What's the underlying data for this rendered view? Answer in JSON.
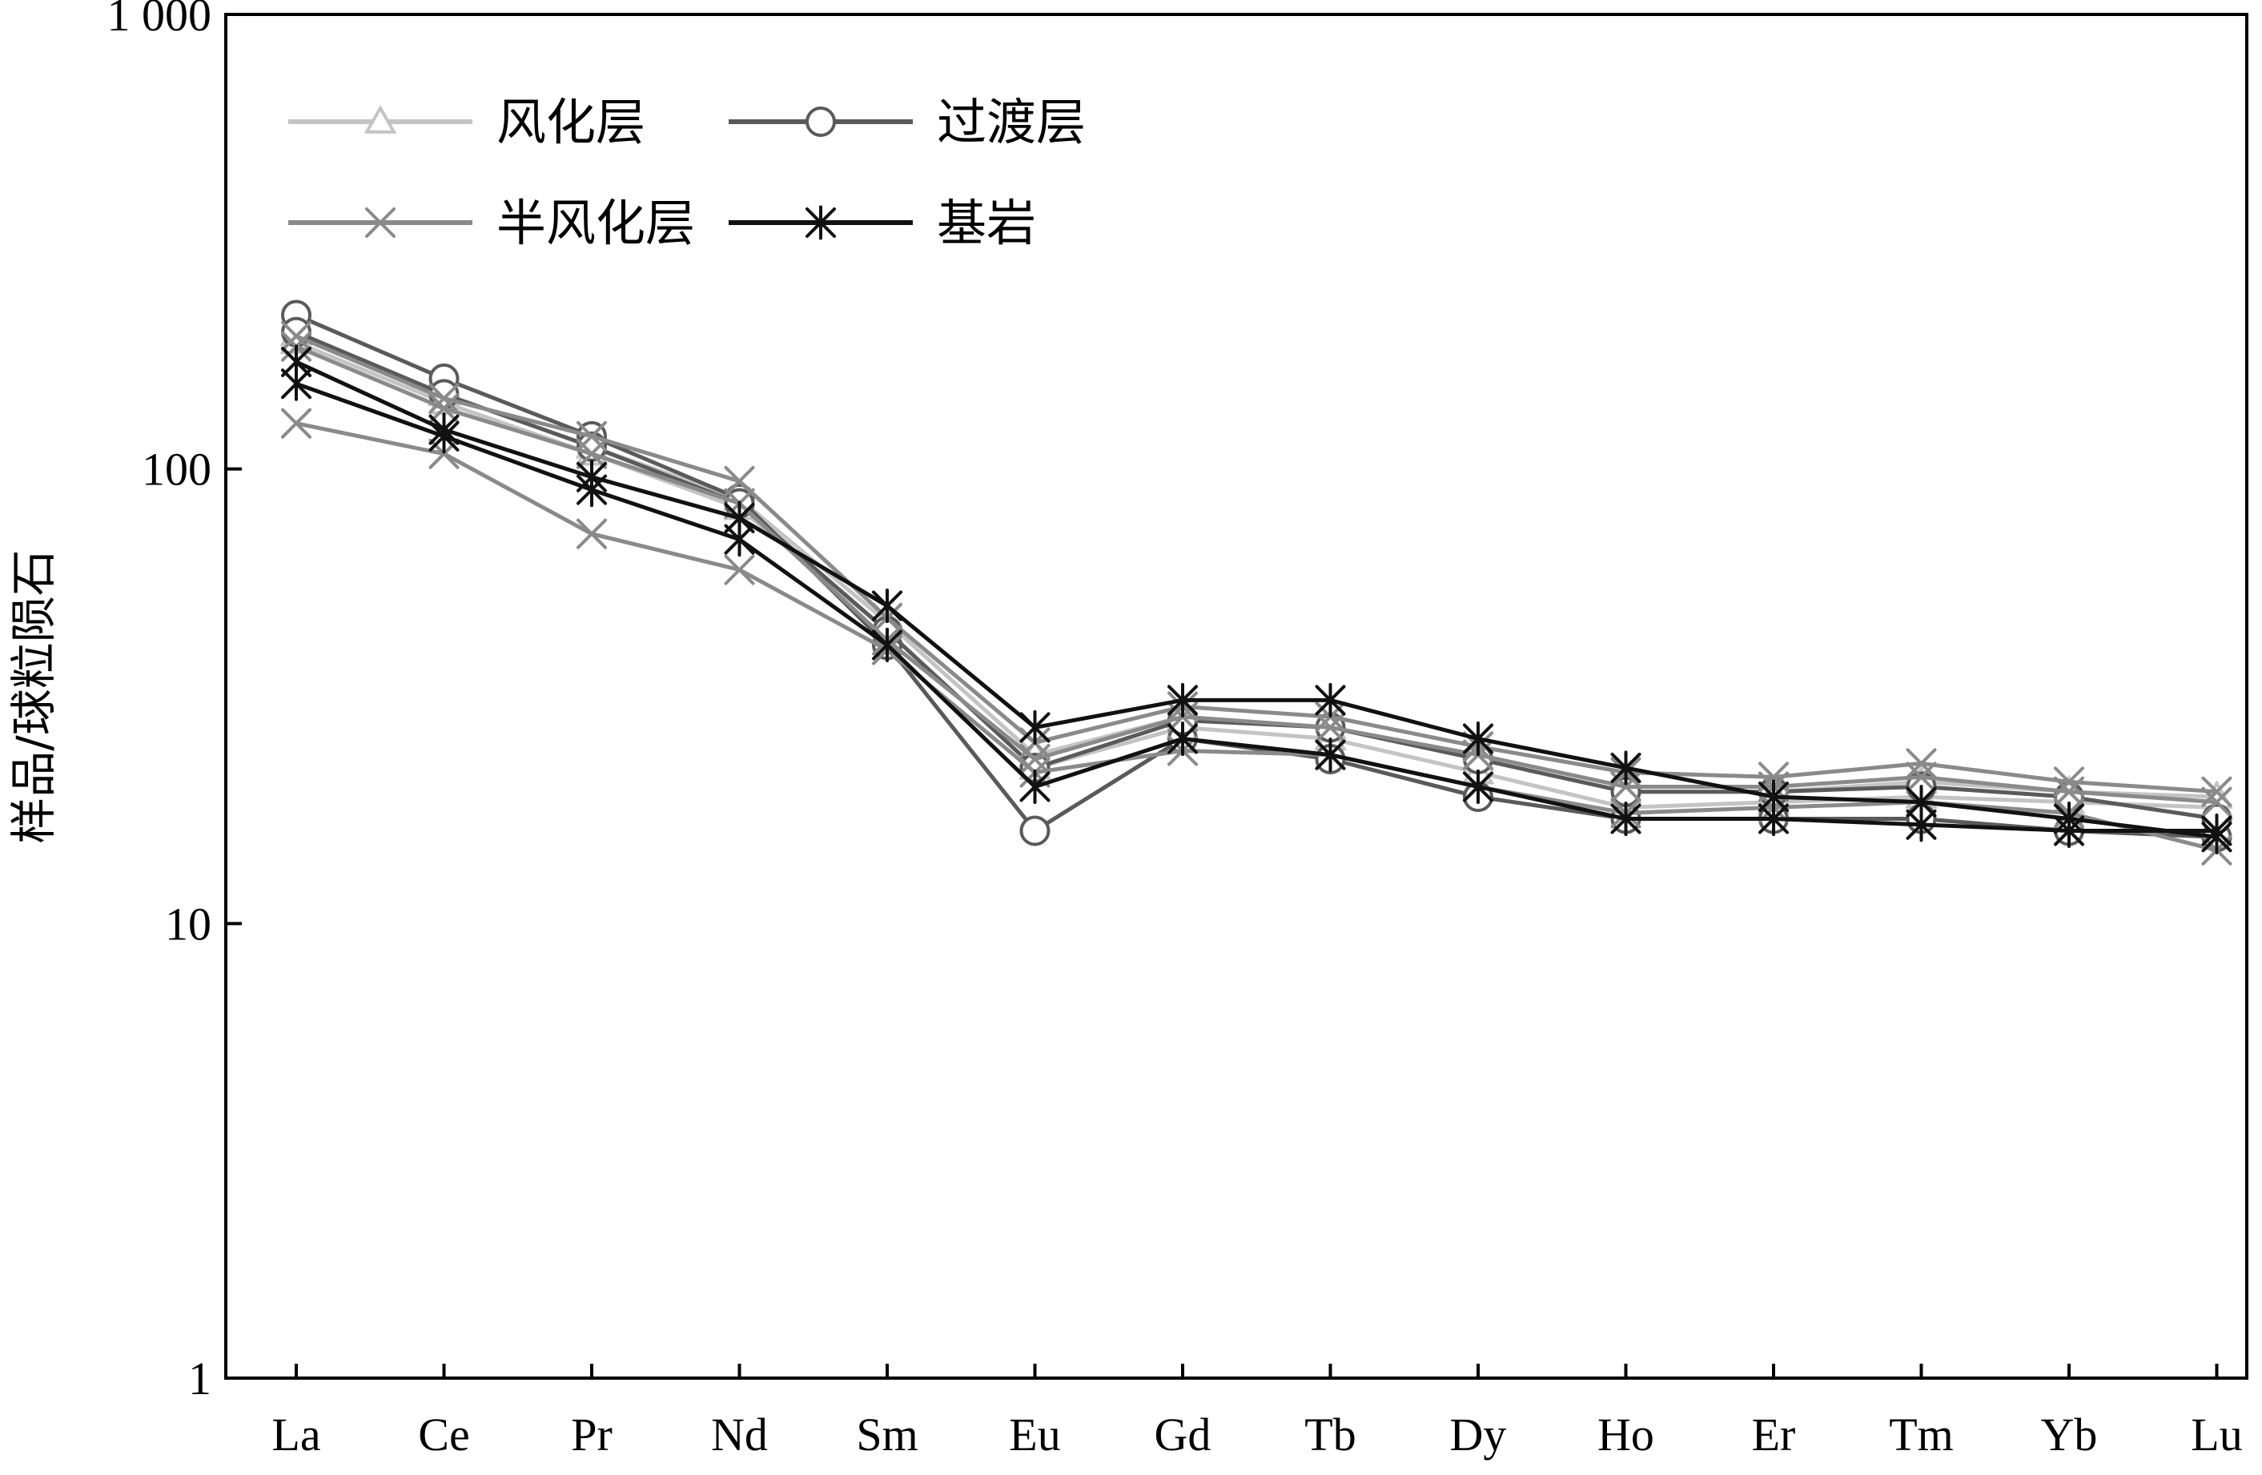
{
  "chart_data": {
    "type": "line",
    "title": "",
    "xlabel": "",
    "ylabel": "样品/球粒陨石",
    "y_scale": "log",
    "ylim": [
      1,
      1000
    ],
    "yticks": [
      {
        "value": 1,
        "label": "1"
      },
      {
        "value": 10,
        "label": "10"
      },
      {
        "value": 100,
        "label": "100"
      },
      {
        "value": 1000,
        "label": "1 000"
      }
    ],
    "categories": [
      "La",
      "Ce",
      "Pr",
      "Nd",
      "Sm",
      "Eu",
      "Gd",
      "Tb",
      "Dy",
      "Ho",
      "Er",
      "Tm",
      "Yb",
      "Lu"
    ],
    "grid": false,
    "legend_position": "top-left",
    "legend": [
      {
        "label": "风化层",
        "marker": "triangle",
        "color": "#c4c4c4"
      },
      {
        "label": "过渡层",
        "marker": "circle",
        "color": "#5a5a5a"
      },
      {
        "label": "半风化层",
        "marker": "x",
        "color": "#8a8a8a"
      },
      {
        "label": "基岩",
        "marker": "asterisk",
        "color": "#111111"
      }
    ],
    "series": [
      {
        "group": "风化层",
        "values": [
          190,
          140,
          108,
          82,
          44,
          22,
          27,
          25.5,
          21.5,
          18,
          18.5,
          19,
          18.5,
          18
        ],
        "color": "#c4c4c4",
        "marker": "triangle"
      },
      {
        "group": "风化层",
        "values": [
          198,
          146,
          112,
          86,
          46,
          23.5,
          28.5,
          27,
          23,
          19.5,
          19.5,
          20.5,
          19.5,
          19
        ],
        "color": "#c4c4c4",
        "marker": "triangle"
      },
      {
        "group": "过渡层",
        "values": [
          218,
          158,
          118,
          86,
          41,
          16,
          25.5,
          23,
          19,
          17,
          17,
          17,
          16,
          15.5
        ],
        "color": "#5a5a5a",
        "marker": "circle"
      },
      {
        "group": "过渡层",
        "values": [
          200,
          146,
          112,
          84,
          44,
          22,
          28,
          27,
          23,
          19.5,
          19.5,
          20,
          19,
          17
        ],
        "color": "#5a5a5a",
        "marker": "circle"
      },
      {
        "group": "半风化层",
        "values": [
          126,
          108,
          72,
          60,
          40,
          21.5,
          24,
          23.5,
          20,
          17.5,
          18,
          18.5,
          17.5,
          14.5
        ],
        "color": "#8a8a8a",
        "marker": "x"
      },
      {
        "group": "半风化层",
        "values": [
          196,
          143,
          118,
          94,
          47,
          25,
          30,
          28.5,
          24.5,
          21.5,
          21,
          22.5,
          20.5,
          19.5
        ],
        "color": "#8a8a8a",
        "marker": "x"
      },
      {
        "group": "半风化层",
        "values": [
          186,
          136,
          108,
          84,
          42,
          23,
          28.5,
          27,
          23.5,
          20,
          20,
          21,
          19.5,
          18.5
        ],
        "color": "#8a8a8a",
        "marker": "x"
      },
      {
        "group": "基岩",
        "values": [
          172,
          122,
          96,
          78,
          50,
          27,
          31,
          31,
          25.5,
          22,
          19,
          18.5,
          17,
          15.5
        ],
        "color": "#111111",
        "marker": "asterisk"
      },
      {
        "group": "基岩",
        "values": [
          154,
          118,
          90,
          70,
          41,
          20,
          25.5,
          23.5,
          20,
          17,
          17,
          16.5,
          16,
          16
        ],
        "color": "#111111",
        "marker": "asterisk"
      }
    ]
  }
}
